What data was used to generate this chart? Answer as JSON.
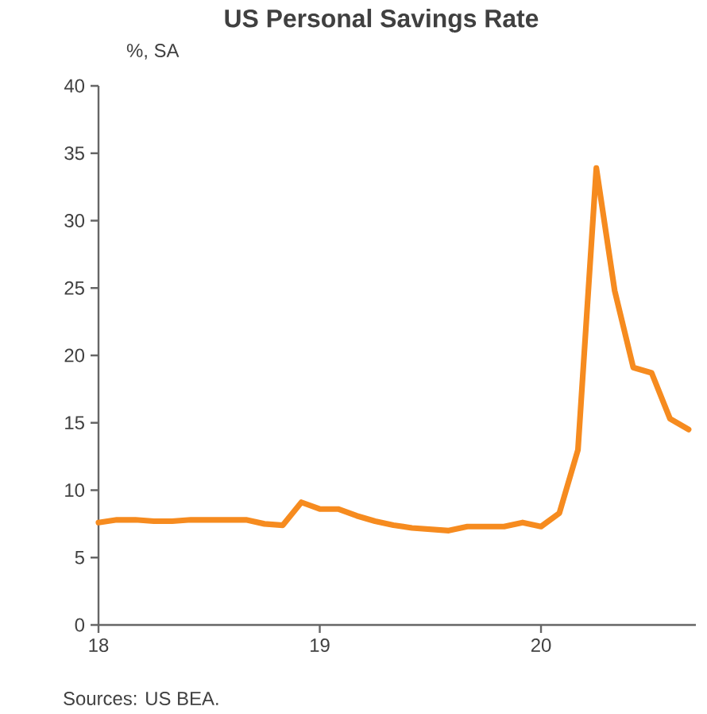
{
  "chart_data": {
    "type": "line",
    "title": "US Personal Savings Rate",
    "annotations": [
      "%, SA",
      "Sources: US BEA."
    ],
    "x": [
      18.0,
      18.083,
      18.167,
      18.25,
      18.333,
      18.417,
      18.5,
      18.583,
      18.667,
      18.75,
      18.833,
      18.917,
      19.0,
      19.083,
      19.167,
      19.25,
      19.333,
      19.417,
      19.5,
      19.583,
      19.667,
      19.75,
      19.833,
      19.917,
      20.0,
      20.083,
      20.167,
      20.25,
      20.333,
      20.417,
      20.5,
      20.583,
      20.667
    ],
    "series": [
      {
        "color": "#f68b1f",
        "values": [
          7.6,
          7.8,
          7.8,
          7.7,
          7.7,
          7.8,
          7.8,
          7.8,
          7.8,
          7.5,
          7.4,
          9.1,
          8.6,
          8.6,
          8.1,
          7.7,
          7.4,
          7.2,
          7.1,
          7.0,
          7.3,
          7.3,
          7.3,
          7.6,
          7.3,
          8.3,
          13.0,
          33.9,
          24.8,
          19.1,
          18.7,
          15.3,
          14.5
        ]
      }
    ],
    "xlim": [
      18,
      20.7
    ],
    "ylim": [
      0,
      40
    ],
    "xticks": [
      18,
      19,
      20
    ],
    "yticks": [
      0,
      5,
      10,
      15,
      20,
      25,
      30,
      35,
      40
    ],
    "grid": false,
    "marker": "none",
    "line_style": "solid"
  }
}
